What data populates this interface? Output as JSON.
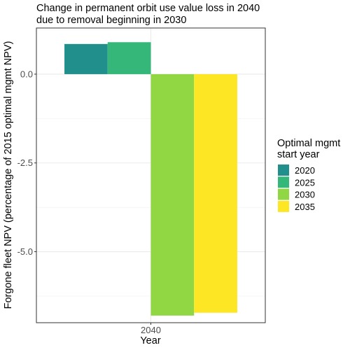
{
  "chart_data": {
    "type": "bar",
    "title": [
      "Change in permanent orbit use value loss in 2040",
      "due to removal beginning in 2030"
    ],
    "xlabel": "Year",
    "ylabel": "Forgone fleet NPV (percentage of 2015 optimal mgmt NPV)",
    "categories": [
      "2040"
    ],
    "series": [
      {
        "name": "2020",
        "values": [
          0.85
        ],
        "color": "#21908c"
      },
      {
        "name": "2025",
        "values": [
          0.9
        ],
        "color": "#35b779"
      },
      {
        "name": "2030",
        "values": [
          -6.8
        ],
        "color": "#90d743"
      },
      {
        "name": "2035",
        "values": [
          -6.72
        ],
        "color": "#fde725"
      }
    ],
    "ylim": [
      -7.0,
      1.3
    ],
    "yticks": [
      0.0,
      -2.5,
      -5.0
    ],
    "ytick_labels": [
      "0.0",
      "-2.5",
      "-5.0"
    ],
    "grid": true,
    "legend": {
      "title": [
        "Optimal mgmt",
        "start year"
      ],
      "position": "right"
    }
  }
}
